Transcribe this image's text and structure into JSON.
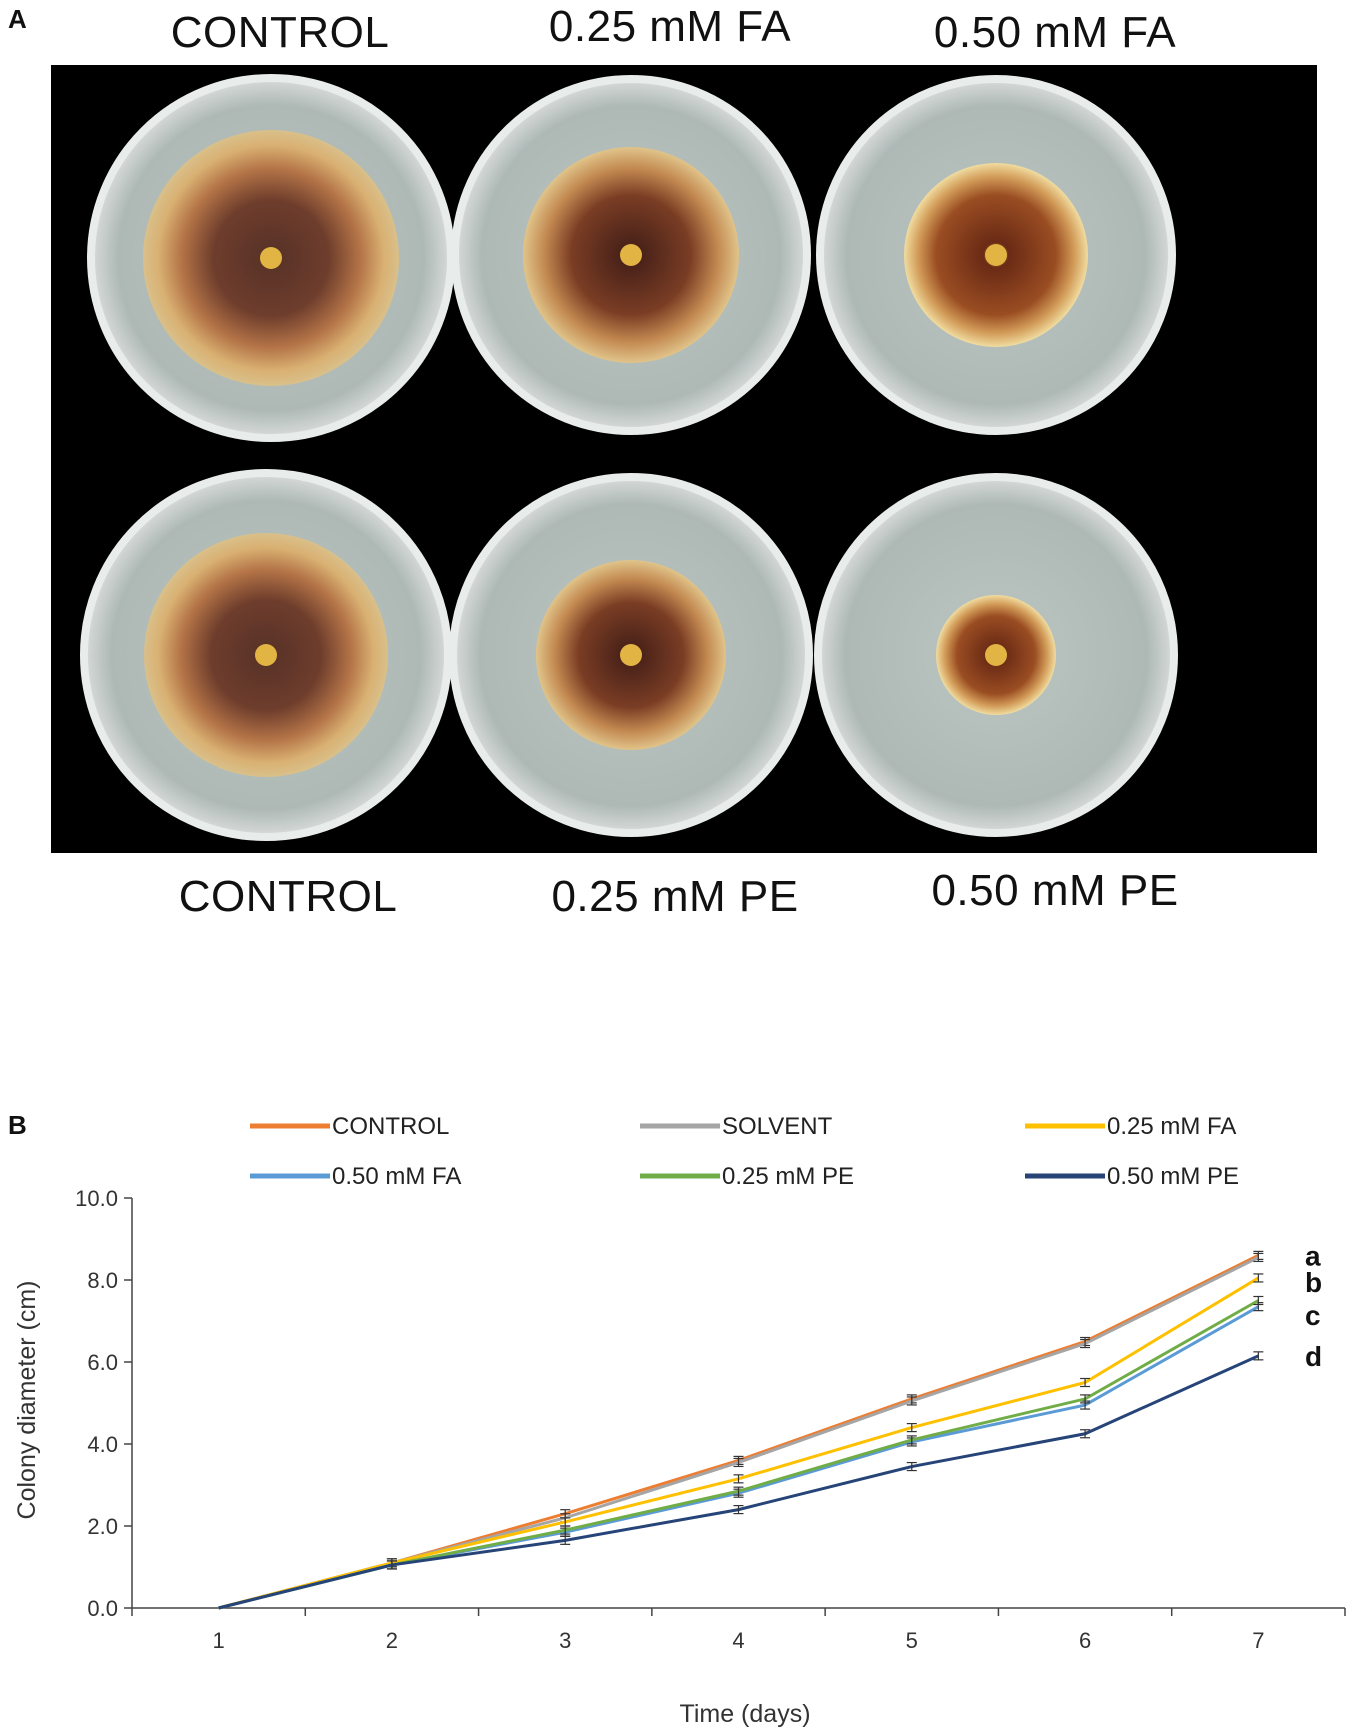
{
  "panel_a": {
    "letter": "A",
    "labels_top": [
      "CONTROL",
      "0.25 mM FA",
      "0.50 mM FA"
    ],
    "labels_bottom": [
      "CONTROL",
      "0.25 mM PE",
      "0.50 mM PE"
    ]
  },
  "panel_b": {
    "letter": "B"
  },
  "chart_data": {
    "type": "line",
    "title": "",
    "xlabel": "Time (days)",
    "ylabel": "Colony diameter (cm)",
    "x": [
      1,
      2,
      3,
      4,
      5,
      6,
      7
    ],
    "xlim": [
      0.5,
      7.5
    ],
    "ylim": [
      0,
      10
    ],
    "yticks": [
      "0.0",
      "2.0",
      "4.0",
      "6.0",
      "8.0",
      "10.0"
    ],
    "grid": false,
    "legend_position": "top",
    "series": [
      {
        "name": "CONTROL",
        "color": "#ED7D31",
        "values": [
          0,
          1.1,
          2.3,
          3.6,
          5.1,
          6.5,
          8.6
        ]
      },
      {
        "name": "SOLVENT",
        "color": "#A5A5A5",
        "values": [
          0,
          1.1,
          2.2,
          3.55,
          5.05,
          6.45,
          8.55
        ]
      },
      {
        "name": "0.25 mM FA",
        "color": "#FFC000",
        "values": [
          0,
          1.1,
          2.1,
          3.15,
          4.4,
          5.5,
          8.05
        ]
      },
      {
        "name": "0.50 mM FA",
        "color": "#5B9BD5",
        "values": [
          0,
          1.05,
          1.85,
          2.8,
          4.05,
          4.95,
          7.35
        ]
      },
      {
        "name": "0.25 mM PE",
        "color": "#70AD47",
        "values": [
          0,
          1.05,
          1.9,
          2.85,
          4.1,
          5.1,
          7.5
        ]
      },
      {
        "name": "0.50 mM PE",
        "color": "#264478",
        "values": [
          0,
          1.05,
          1.65,
          2.4,
          3.45,
          4.25,
          6.15
        ]
      }
    ],
    "annotations": [
      "a",
      "b",
      "c",
      "d"
    ]
  }
}
